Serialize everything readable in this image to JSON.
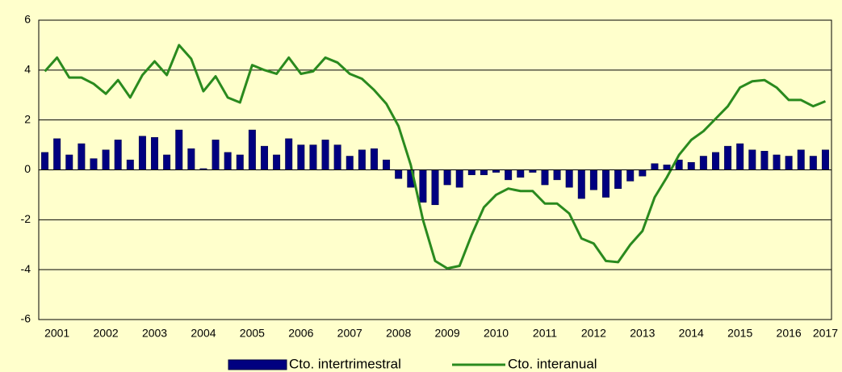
{
  "chart_data": {
    "type": "bar",
    "categories": [
      null,
      "2001",
      null,
      null,
      null,
      "2002",
      null,
      null,
      null,
      "2003",
      null,
      null,
      null,
      "2004",
      null,
      null,
      null,
      "2005",
      null,
      null,
      null,
      "2006",
      null,
      null,
      null,
      "2007",
      null,
      null,
      null,
      "2008",
      null,
      null,
      null,
      "2009",
      null,
      null,
      null,
      "2010",
      null,
      null,
      null,
      "2011",
      null,
      null,
      null,
      "2012",
      null,
      null,
      null,
      "2013",
      null,
      null,
      null,
      "2014",
      null,
      null,
      null,
      "2015",
      null,
      null,
      null,
      "2016",
      null,
      null,
      "2017"
    ],
    "series": [
      {
        "name": "Cto. intertrimestral",
        "type": "bar",
        "color": "#000080",
        "values": [
          0.7,
          1.25,
          0.6,
          1.05,
          0.45,
          0.8,
          1.2,
          0.4,
          1.35,
          1.3,
          0.6,
          1.6,
          0.85,
          0.05,
          1.2,
          0.7,
          0.6,
          1.6,
          0.95,
          0.6,
          1.25,
          1.0,
          1.0,
          1.2,
          1.0,
          0.55,
          0.8,
          0.85,
          0.4,
          -0.35,
          -0.7,
          -1.3,
          -1.4,
          -0.6,
          -0.7,
          -0.2,
          -0.2,
          -0.1,
          -0.4,
          -0.3,
          -0.1,
          -0.6,
          -0.4,
          -0.7,
          -1.15,
          -0.8,
          -1.1,
          -0.75,
          -0.45,
          -0.25,
          0.25,
          0.2,
          0.4,
          0.3,
          0.55,
          0.7,
          0.95,
          1.05,
          0.8,
          0.75,
          0.6,
          0.55,
          0.8,
          0.55,
          0.8
        ]
      },
      {
        "name": "Cto. interanual",
        "type": "line",
        "color": "#2a8a1e",
        "values": [
          3.95,
          4.5,
          3.7,
          3.7,
          3.45,
          3.05,
          3.6,
          2.9,
          3.8,
          4.35,
          3.8,
          5.0,
          4.45,
          3.15,
          3.75,
          2.9,
          2.7,
          4.2,
          4.0,
          3.85,
          4.5,
          3.85,
          3.95,
          4.5,
          4.3,
          3.85,
          3.65,
          3.2,
          2.65,
          1.75,
          0.2,
          -2.0,
          -3.65,
          -3.95,
          -3.85,
          -2.6,
          -1.5,
          -1.0,
          -0.75,
          -0.85,
          -0.85,
          -1.35,
          -1.35,
          -1.75,
          -2.75,
          -2.95,
          -3.65,
          -3.7,
          -3.0,
          -2.45,
          -1.1,
          -0.3,
          0.6,
          1.2,
          1.55,
          2.05,
          2.55,
          3.3,
          3.55,
          3.6,
          3.3,
          2.8,
          2.8,
          2.55,
          2.75
        ]
      }
    ],
    "ylim": [
      -6,
      6
    ],
    "yticks": [
      -6,
      -4,
      -2,
      0,
      2,
      4,
      6
    ],
    "grid": true,
    "legend": "bottom"
  }
}
